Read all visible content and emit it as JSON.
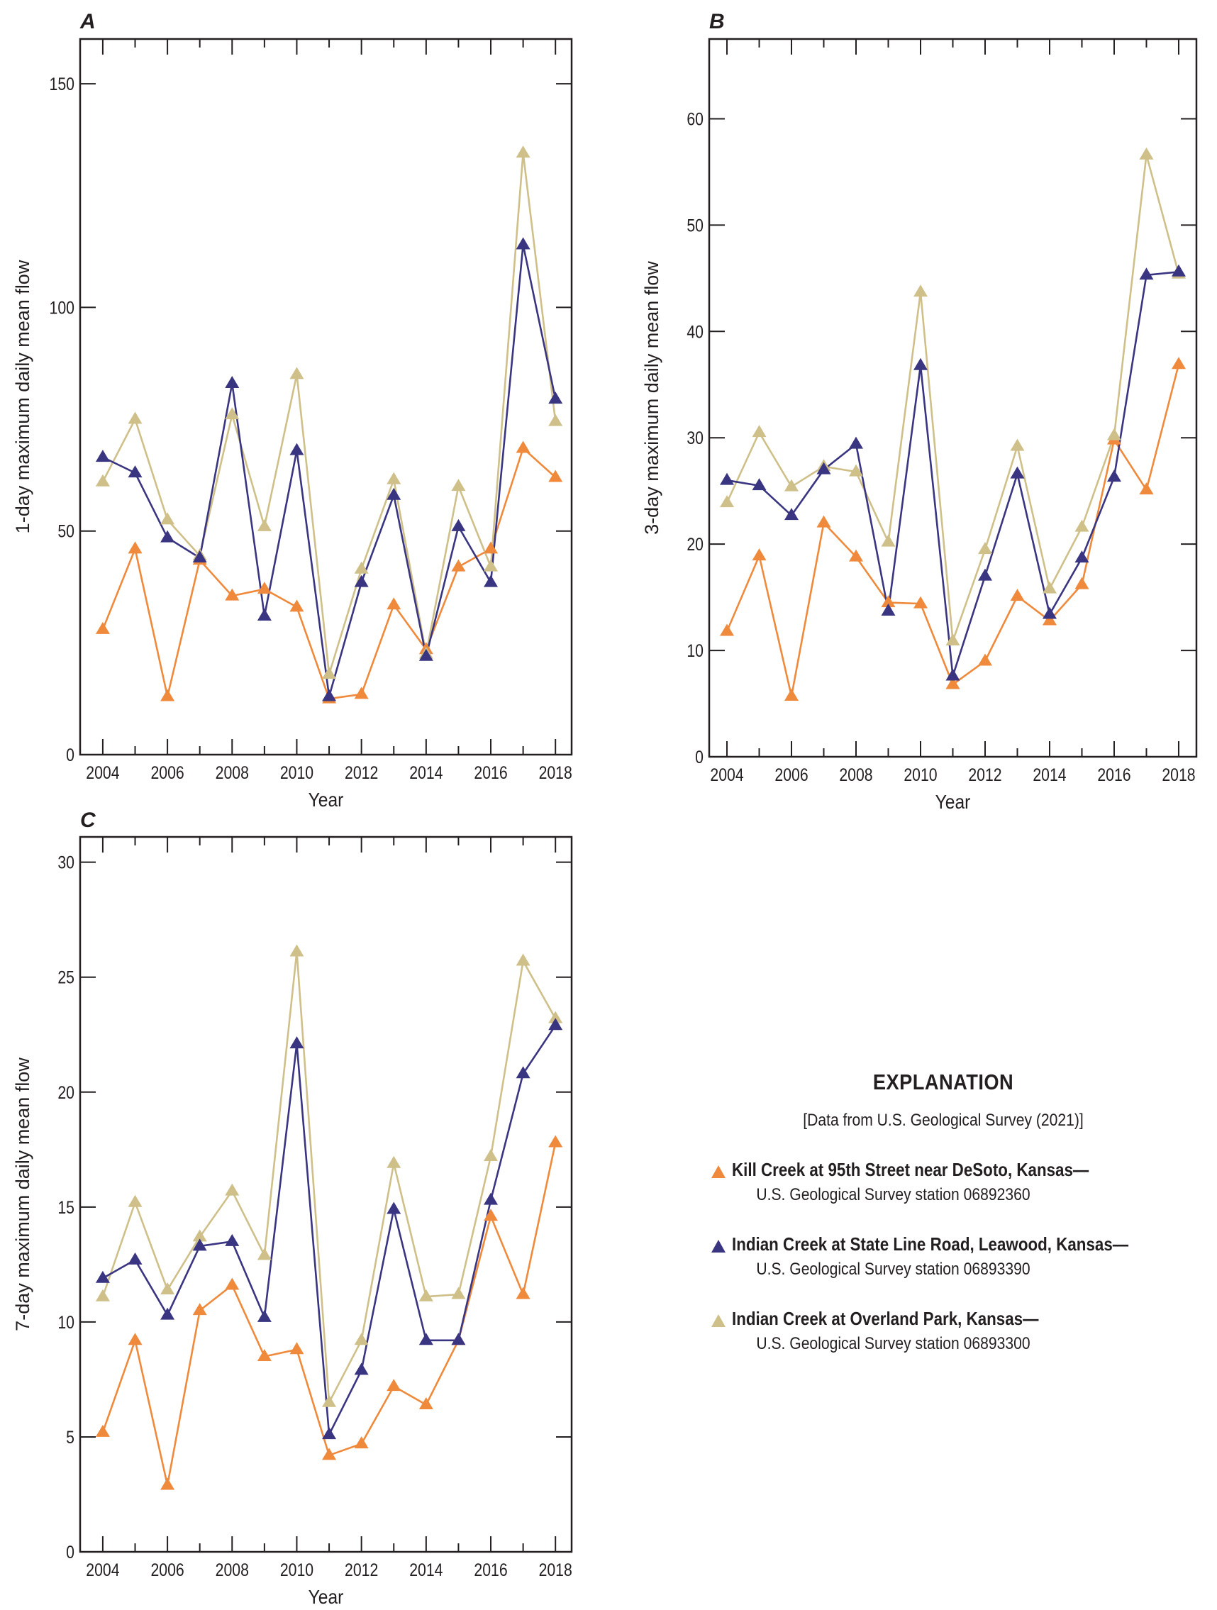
{
  "chart_data": [
    {
      "type": "line",
      "panel_label": "A",
      "title": "",
      "xlabel": "Year",
      "ylabel": "1-day maximum daily mean flow",
      "x": [
        2004,
        2005,
        2006,
        2007,
        2008,
        2009,
        2010,
        2011,
        2012,
        2013,
        2014,
        2015,
        2016,
        2017,
        2018
      ],
      "xticks": [
        2004,
        2006,
        2008,
        2010,
        2012,
        2014,
        2016,
        2018
      ],
      "xlim": [
        2003.3,
        2018.5
      ],
      "ylim": [
        0,
        160
      ],
      "yticks": [
        0,
        50,
        100,
        150
      ],
      "grid": false,
      "series": [
        {
          "name": "Kill Creek at 95th Street near DeSoto, Kansas",
          "key": "kill",
          "values": [
            28,
            46,
            13,
            43.5,
            35.5,
            37,
            33,
            12.5,
            13.5,
            33.5,
            23.5,
            42,
            46,
            68.5,
            62
          ]
        },
        {
          "name": "Indian Creek at State Line Road, Leawood, Kansas",
          "key": "leawood",
          "values": [
            66.5,
            63,
            48.5,
            44,
            83,
            31,
            68,
            13,
            38.5,
            58,
            22,
            51,
            38.5,
            114,
            79.5
          ]
        },
        {
          "name": "Indian Creek at Overland Park, Kansas",
          "key": "overland",
          "values": [
            61,
            75,
            52.5,
            44.5,
            76,
            51,
            85,
            18,
            41.5,
            61.5,
            22.5,
            60,
            42,
            134.5,
            74.5
          ]
        }
      ]
    },
    {
      "type": "line",
      "panel_label": "B",
      "title": "",
      "xlabel": "Year",
      "ylabel": "3-day maximum daily mean flow",
      "x": [
        2004,
        2005,
        2006,
        2007,
        2008,
        2009,
        2010,
        2011,
        2012,
        2013,
        2014,
        2015,
        2016,
        2017,
        2018
      ],
      "xticks": [
        2004,
        2006,
        2008,
        2010,
        2012,
        2014,
        2016,
        2018
      ],
      "xlim": [
        2003.45,
        2018.55
      ],
      "ylim": [
        0,
        67.5
      ],
      "yticks": [
        0,
        10,
        20,
        30,
        40,
        50,
        60
      ],
      "grid": false,
      "series": [
        {
          "name": "Kill Creek at 95th Street near DeSoto, Kansas",
          "key": "kill",
          "values": [
            11.8,
            18.9,
            5.7,
            22,
            18.8,
            14.5,
            14.4,
            6.8,
            9,
            15.1,
            12.8,
            16.2,
            29.8,
            25.1,
            36.9
          ]
        },
        {
          "name": "Indian Creek at State Line Road, Leawood, Kansas",
          "key": "leawood",
          "values": [
            26,
            25.5,
            22.7,
            27,
            29.4,
            13.7,
            36.8,
            7.6,
            17,
            26.6,
            13.4,
            18.7,
            26.3,
            45.3,
            45.6
          ]
        },
        {
          "name": "Indian Creek at Overland Park, Kansas",
          "key": "overland",
          "values": [
            23.9,
            30.5,
            25.4,
            27.3,
            26.8,
            20.2,
            43.7,
            10.9,
            19.5,
            29.2,
            15.8,
            21.6,
            30.2,
            56.6,
            45.4
          ]
        }
      ]
    },
    {
      "type": "line",
      "panel_label": "C",
      "title": "",
      "xlabel": "Year",
      "ylabel": "7-day maximum daily mean flow",
      "x": [
        2004,
        2005,
        2006,
        2007,
        2008,
        2009,
        2010,
        2011,
        2012,
        2013,
        2014,
        2015,
        2016,
        2017,
        2018
      ],
      "xticks": [
        2004,
        2006,
        2008,
        2010,
        2012,
        2014,
        2016,
        2018
      ],
      "xlim": [
        2003.3,
        2018.5
      ],
      "ylim": [
        0,
        31.1
      ],
      "yticks": [
        0,
        5,
        10,
        15,
        20,
        25,
        30
      ],
      "grid": false,
      "series": [
        {
          "name": "Kill Creek at 95th Street near DeSoto, Kansas",
          "key": "kill",
          "values": [
            5.2,
            9.2,
            2.9,
            10.5,
            11.6,
            8.5,
            8.8,
            4.2,
            4.7,
            7.2,
            6.4,
            9.2,
            14.6,
            11.2,
            17.8
          ]
        },
        {
          "name": "Indian Creek at State Line Road, Leawood, Kansas",
          "key": "leawood",
          "values": [
            11.9,
            12.7,
            10.3,
            13.3,
            13.5,
            10.2,
            22.1,
            5.1,
            7.9,
            14.9,
            9.2,
            9.2,
            15.3,
            20.8,
            22.9
          ]
        },
        {
          "name": "Indian Creek at Overland Park, Kansas",
          "key": "overland",
          "values": [
            11.1,
            15.2,
            11.4,
            13.7,
            15.7,
            12.9,
            26.1,
            6.5,
            9.2,
            16.9,
            11.1,
            11.2,
            17.2,
            25.7,
            23.2
          ]
        }
      ]
    }
  ],
  "colors": {
    "kill": "#ef8a3c",
    "leawood": "#3a3580",
    "overland": "#cfc08a",
    "axis": "#231f20"
  },
  "legend": {
    "title": "EXPLANATION",
    "source": "[Data from U.S. Geological Survey (2021)]",
    "items": [
      {
        "key": "kill",
        "name": "Kill Creek at 95th Street near DeSoto, Kansas—",
        "station": "U.S. Geological Survey station 06892360"
      },
      {
        "key": "leawood",
        "name": "Indian Creek at State Line Road, Leawood, Kansas—",
        "station": "U.S. Geological Survey station 06893390"
      },
      {
        "key": "overland",
        "name": "Indian Creek at Overland Park, Kansas—",
        "station": "U.S. Geological Survey station 06893300"
      }
    ]
  }
}
